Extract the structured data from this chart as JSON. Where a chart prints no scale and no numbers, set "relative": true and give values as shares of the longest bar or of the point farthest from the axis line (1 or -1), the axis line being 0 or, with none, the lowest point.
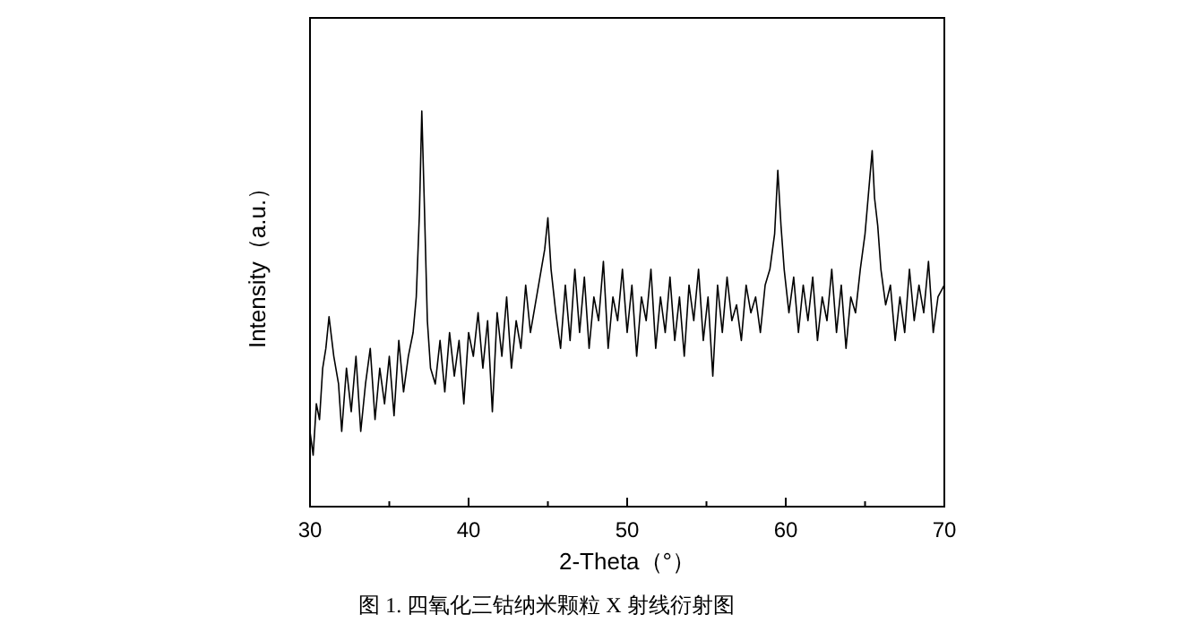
{
  "chart_data": {
    "type": "line",
    "relative": true,
    "xlabel": "2-Theta（°）",
    "ylabel": "Intensity（a.u.）",
    "annotations": [
      "图 1. 四氧化三钴纳米颗粒 X 射线衍射图"
    ],
    "xlim": [
      30,
      70
    ],
    "xticks": [
      30,
      {
        "value": 35,
        "label": null
      },
      40,
      {
        "value": 45,
        "label": null
      },
      50,
      {
        "value": 55,
        "label": null
      },
      60,
      {
        "value": 65,
        "label": null
      },
      70
    ],
    "grid": false,
    "series": [
      {
        "color": "#000000",
        "x": [
          30.0,
          30.2,
          30.4,
          30.6,
          30.8,
          31.0,
          31.2,
          31.5,
          31.8,
          32.0,
          32.3,
          32.6,
          32.9,
          33.2,
          33.5,
          33.8,
          34.1,
          34.4,
          34.7,
          35.0,
          35.3,
          35.6,
          35.9,
          36.2,
          36.5,
          36.7,
          36.9,
          37.05,
          37.2,
          37.4,
          37.6,
          37.9,
          38.2,
          38.5,
          38.8,
          39.1,
          39.4,
          39.7,
          40.0,
          40.3,
          40.6,
          40.9,
          41.2,
          41.5,
          41.8,
          42.1,
          42.4,
          42.7,
          43.0,
          43.3,
          43.6,
          43.9,
          44.2,
          44.5,
          44.8,
          45.0,
          45.2,
          45.5,
          45.8,
          46.1,
          46.4,
          46.7,
          47.0,
          47.3,
          47.6,
          47.9,
          48.2,
          48.5,
          48.8,
          49.1,
          49.4,
          49.7,
          50.0,
          50.3,
          50.6,
          50.9,
          51.2,
          51.5,
          51.8,
          52.1,
          52.4,
          52.7,
          53.0,
          53.3,
          53.6,
          53.9,
          54.2,
          54.5,
          54.8,
          55.1,
          55.4,
          55.7,
          56.0,
          56.3,
          56.6,
          56.9,
          57.2,
          57.5,
          57.8,
          58.1,
          58.4,
          58.7,
          59.0,
          59.3,
          59.5,
          59.7,
          59.9,
          60.2,
          60.5,
          60.8,
          61.1,
          61.4,
          61.7,
          62.0,
          62.3,
          62.6,
          62.9,
          63.2,
          63.5,
          63.8,
          64.1,
          64.4,
          64.7,
          65.0,
          65.3,
          65.45,
          65.6,
          65.8,
          66.0,
          66.3,
          66.6,
          66.9,
          67.2,
          67.5,
          67.8,
          68.1,
          68.4,
          68.7,
          69.0,
          69.3,
          69.6,
          70.0
        ],
        "values": [
          0.19,
          0.13,
          0.26,
          0.22,
          0.35,
          0.4,
          0.48,
          0.38,
          0.31,
          0.19,
          0.35,
          0.24,
          0.38,
          0.19,
          0.31,
          0.4,
          0.22,
          0.35,
          0.26,
          0.38,
          0.23,
          0.42,
          0.29,
          0.38,
          0.44,
          0.53,
          0.74,
          1.0,
          0.78,
          0.47,
          0.35,
          0.31,
          0.42,
          0.29,
          0.44,
          0.33,
          0.42,
          0.26,
          0.44,
          0.38,
          0.49,
          0.35,
          0.47,
          0.24,
          0.49,
          0.38,
          0.53,
          0.35,
          0.47,
          0.4,
          0.56,
          0.44,
          0.51,
          0.58,
          0.65,
          0.73,
          0.6,
          0.49,
          0.4,
          0.56,
          0.42,
          0.6,
          0.44,
          0.58,
          0.4,
          0.53,
          0.47,
          0.62,
          0.4,
          0.53,
          0.47,
          0.6,
          0.44,
          0.56,
          0.38,
          0.53,
          0.47,
          0.6,
          0.4,
          0.53,
          0.44,
          0.58,
          0.42,
          0.53,
          0.38,
          0.56,
          0.47,
          0.6,
          0.42,
          0.53,
          0.33,
          0.56,
          0.44,
          0.58,
          0.47,
          0.51,
          0.42,
          0.56,
          0.49,
          0.53,
          0.44,
          0.56,
          0.6,
          0.69,
          0.85,
          0.71,
          0.6,
          0.49,
          0.58,
          0.44,
          0.56,
          0.47,
          0.58,
          0.42,
          0.53,
          0.47,
          0.6,
          0.44,
          0.56,
          0.4,
          0.53,
          0.49,
          0.6,
          0.69,
          0.83,
          0.9,
          0.78,
          0.71,
          0.6,
          0.51,
          0.56,
          0.42,
          0.53,
          0.44,
          0.6,
          0.47,
          0.56,
          0.49,
          0.62,
          0.44,
          0.53,
          0.56
        ]
      }
    ]
  }
}
